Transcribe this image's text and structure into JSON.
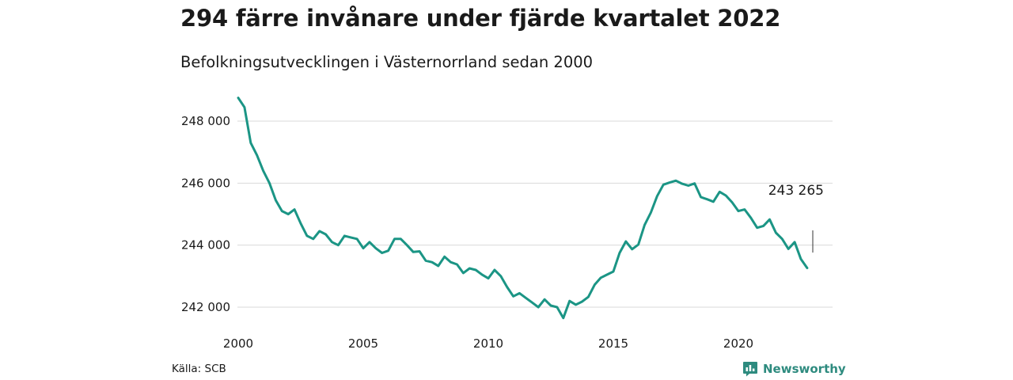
{
  "title": "294 färre invånare under fjärde kvartalet 2022",
  "subtitle": "Befolkningsutvecklingen i Västernorrland sedan 2000",
  "source": "Källa: SCB",
  "brand": {
    "name": "Newsworthy",
    "icon": "bar-chart-speech-icon",
    "color": "#2e8b7f"
  },
  "colors": {
    "line": "#1b9585",
    "grid": "#d9d9d9",
    "annotation_tick": "#333333"
  },
  "chart_data": {
    "type": "line",
    "title": "294 färre invånare under fjärde kvartalet 2022",
    "subtitle": "Befolkningsutvecklingen i Västernorrland sedan 2000",
    "xlabel": "",
    "ylabel": "",
    "x_ticks": [
      2000,
      2005,
      2010,
      2015,
      2020
    ],
    "x_tick_labels": [
      "2000",
      "2005",
      "2010",
      "2015",
      "2020"
    ],
    "y_ticks": [
      242000,
      244000,
      246000,
      248000
    ],
    "y_tick_labels": [
      "242 000",
      "244 000",
      "246 000",
      "248 000"
    ],
    "xlim": [
      2000,
      2023.25
    ],
    "ylim": [
      241550,
      249000
    ],
    "grid": "horizontal",
    "legend": "none",
    "annotation": {
      "text": "243 265",
      "x": 2022.75,
      "y": 243265
    },
    "series": [
      {
        "x_start": 2000.0,
        "x_step": 0.25,
        "values": [
          248750,
          248450,
          247300,
          246900,
          246400,
          246000,
          245450,
          245100,
          245000,
          245150,
          244700,
          244300,
          244200,
          244450,
          244350,
          244100,
          244000,
          244300,
          244250,
          244200,
          243900,
          244100,
          243900,
          243750,
          243820,
          244200,
          244200,
          244000,
          243780,
          243800,
          243500,
          243450,
          243330,
          243630,
          243450,
          243380,
          243100,
          243250,
          243200,
          243050,
          242930,
          243200,
          243000,
          242650,
          242350,
          242450,
          242300,
          242150,
          242000,
          242250,
          242050,
          242000,
          241650,
          242200,
          242080,
          242180,
          242330,
          242720,
          242950,
          243050,
          243150,
          243750,
          244120,
          243870,
          244020,
          244650,
          245050,
          245580,
          245950,
          246020,
          246080,
          245980,
          245920,
          245990,
          245550,
          245480,
          245400,
          245720,
          245600,
          245380,
          245100,
          245150,
          244880,
          244560,
          244620,
          244830,
          244400,
          244200,
          243880,
          244100,
          243550,
          243265
        ]
      }
    ]
  }
}
